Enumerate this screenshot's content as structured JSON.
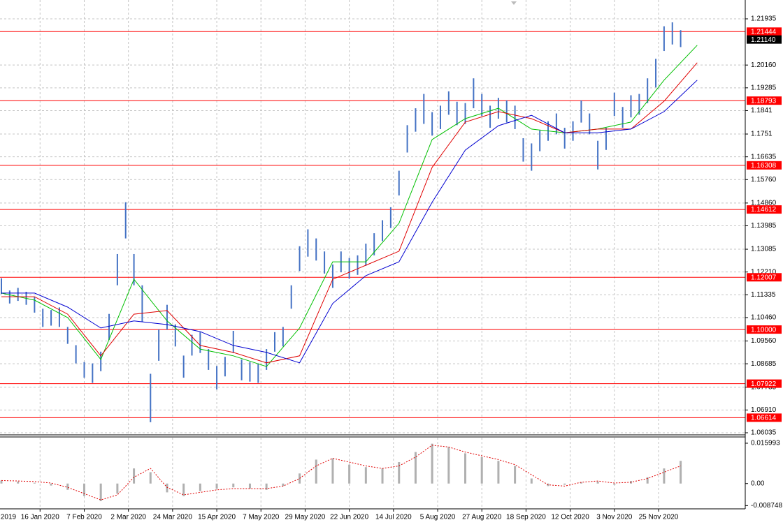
{
  "chart_data": [
    {
      "type": "ohlc",
      "color": "#4472c4",
      "xlim": [
        0,
        269.4
      ],
      "ylim": [
        1.05981,
        1.22605
      ],
      "grid": true,
      "xticks": [
        {
          "value": -2,
          "label": "2019"
        },
        {
          "value": 14,
          "label": "16 Jan 2020"
        },
        {
          "value": 30,
          "label": "7 Feb 2020"
        },
        {
          "value": 46,
          "label": "2 Mar 2020"
        },
        {
          "value": 62,
          "label": "24 Mar 2020"
        },
        {
          "value": 78,
          "label": "15 Apr 2020"
        },
        {
          "value": 94,
          "label": "7 May 2020"
        },
        {
          "value": 110,
          "label": "29 May 2020"
        },
        {
          "value": 126,
          "label": "22 Jun 2020"
        },
        {
          "value": 142,
          "label": "14 Jul 2020"
        },
        {
          "value": 158,
          "label": "5 Aug 2020"
        },
        {
          "value": 174,
          "label": "27 Aug 2020"
        },
        {
          "value": 190,
          "label": "18 Sep 2020"
        },
        {
          "value": 206,
          "label": "12 Oct 2020"
        },
        {
          "value": 222,
          "label": "3 Nov 2020"
        },
        {
          "value": 238,
          "label": "25 Nov 2020"
        }
      ],
      "yticks": [
        1.21935,
        {
          "value": 1.2016,
          "label": "1.20160"
        },
        1.19285,
        1.1841,
        1.1751,
        1.16635,
        {
          "value": 1.1576,
          "label": "1.15760"
        },
        {
          "value": 1.1486,
          "label": "1.14860"
        },
        1.13985,
        1.13085,
        {
          "value": 1.1221,
          "label": "1.12210"
        },
        1.11335,
        {
          "value": 1.1046,
          "label": "1.10460"
        },
        {
          "value": 1.0956,
          "label": "1.09560"
        },
        1.08685,
        1.07785,
        {
          "value": 1.0691,
          "label": "1.06910"
        },
        1.06035
      ],
      "level_color": "#ff0000",
      "levels": [
        1.21444,
        1.18793,
        1.16308,
        1.14612,
        1.12007,
        {
          "value": 1.1,
          "label": "1.10000"
        },
        1.07922,
        1.06614
      ],
      "last_price": {
        "value": 1.2114,
        "label": "1.21140"
      },
      "x": [
        0,
        3,
        6,
        9,
        12,
        15,
        18,
        21,
        24,
        27,
        30,
        33,
        36,
        39,
        42,
        45,
        48,
        51,
        54,
        57,
        60,
        63,
        66,
        69,
        72,
        75,
        78,
        81,
        84,
        87,
        90,
        93,
        96,
        99,
        102,
        105,
        108,
        111,
        114,
        117,
        120,
        123,
        126,
        129,
        132,
        135,
        138,
        141,
        144,
        147,
        150,
        153,
        156,
        159,
        162,
        165,
        168,
        171,
        174,
        177,
        180,
        183,
        186,
        189,
        192,
        195,
        198,
        201,
        204,
        207,
        210,
        213,
        216,
        219,
        222,
        225,
        228,
        231,
        234,
        237,
        240,
        243,
        246
      ],
      "high": [
        1.1197,
        1.115,
        1.116,
        1.1145,
        1.1125,
        1.108,
        1.1075,
        1.1085,
        1.101,
        1.094,
        1.0875,
        1.087,
        1.0915,
        1.106,
        1.129,
        1.1489,
        1.129,
        1.117,
        1.083,
        1.1,
        1.1095,
        1.102,
        1.09,
        1.098,
        1.099,
        1.0925,
        1.086,
        1.0895,
        1.0995,
        1.0885,
        1.0875,
        1.087,
        1.0925,
        1.099,
        1.101,
        1.117,
        1.132,
        1.1385,
        1.135,
        1.13,
        1.125,
        1.13,
        1.1275,
        1.1285,
        1.133,
        1.137,
        1.142,
        1.147,
        1.161,
        1.1785,
        1.185,
        1.1905,
        1.1835,
        1.186,
        1.1915,
        1.1875,
        1.187,
        1.1965,
        1.1905,
        1.186,
        1.189,
        1.188,
        1.186,
        1.1735,
        1.1715,
        1.1765,
        1.18,
        1.183,
        1.1775,
        1.18,
        1.188,
        1.183,
        1.1725,
        1.1775,
        1.191,
        1.1855,
        1.19,
        1.1905,
        1.1965,
        1.204,
        1.2165,
        1.218,
        1.215
      ],
      "low": [
        1.1137,
        1.11,
        1.111,
        1.1095,
        1.1065,
        1.101,
        1.1015,
        1.101,
        1.0945,
        1.087,
        1.0815,
        1.0795,
        1.084,
        1.096,
        1.117,
        1.135,
        1.117,
        1.103,
        1.0644,
        1.088,
        1.1,
        1.0935,
        1.0815,
        1.09,
        1.091,
        1.0845,
        1.077,
        1.082,
        1.091,
        1.0805,
        1.08,
        1.0795,
        1.0845,
        1.0915,
        1.0935,
        1.108,
        1.1225,
        1.128,
        1.1265,
        1.1215,
        1.116,
        1.122,
        1.1195,
        1.121,
        1.1245,
        1.1285,
        1.134,
        1.139,
        1.1515,
        1.168,
        1.176,
        1.179,
        1.1745,
        1.177,
        1.1825,
        1.1785,
        1.179,
        1.185,
        1.182,
        1.1775,
        1.181,
        1.1795,
        1.177,
        1.1645,
        1.161,
        1.1685,
        1.1725,
        1.175,
        1.1695,
        1.1725,
        1.1795,
        1.175,
        1.1615,
        1.169,
        1.182,
        1.1775,
        1.1815,
        1.1825,
        1.187,
        1.193,
        1.207,
        1.2095,
        1.2085
      ],
      "series": [
        {
          "color": "#00c000",
          "x": [
            0,
            12,
            24,
            36,
            48,
            60,
            72,
            84,
            96,
            108,
            120,
            132,
            144,
            156,
            168,
            180,
            192,
            204,
            216,
            228,
            240,
            252
          ],
          "values": [
            1.114,
            1.1113,
            1.1046,
            1.0885,
            1.1193,
            1.1033,
            1.0925,
            1.0899,
            1.0858,
            1.1006,
            1.126,
            1.126,
            1.1408,
            1.173,
            1.181,
            1.185,
            1.177,
            1.1756,
            1.177,
            1.1797,
            1.1958,
            1.2092
          ]
        },
        {
          "color": "#e00000",
          "x": [
            0,
            12,
            24,
            36,
            48,
            60,
            72,
            84,
            96,
            108,
            120,
            132,
            144,
            156,
            168,
            180,
            192,
            204,
            216,
            228,
            240,
            252
          ],
          "values": [
            1.1126,
            1.1126,
            1.1059,
            1.0899,
            1.1059,
            1.1073,
            1.0939,
            1.0912,
            1.0872,
            1.0899,
            1.1193,
            1.1247,
            1.1301,
            1.1623,
            1.1797,
            1.1837,
            1.181,
            1.1756,
            1.177,
            1.177,
            1.1877,
            1.2025
          ]
        },
        {
          "color": "#0000d0",
          "x": [
            0,
            12,
            24,
            36,
            48,
            60,
            72,
            84,
            96,
            108,
            120,
            132,
            144,
            156,
            168,
            180,
            192,
            204,
            216,
            228,
            240,
            252
          ],
          "values": [
            1.114,
            1.114,
            1.1086,
            1.1006,
            1.1033,
            1.1019,
            1.0992,
            1.0939,
            1.0912,
            1.0872,
            1.11,
            1.1207,
            1.126,
            1.1489,
            1.1689,
            1.1783,
            1.1823,
            1.1756,
            1.1756,
            1.177,
            1.1837,
            1.1958
          ]
        }
      ]
    },
    {
      "type": "macd",
      "color": "#b0b0b0",
      "xlim": [
        0,
        269.4
      ],
      "ylim": [
        -0.00976,
        0.0182
      ],
      "yticks": [
        0.015993,
        {
          "value": 0,
          "label": "0.00"
        },
        -0.008748
      ],
      "x": [
        0,
        6,
        12,
        18,
        24,
        30,
        36,
        42,
        48,
        54,
        60,
        66,
        72,
        78,
        84,
        90,
        96,
        102,
        108,
        114,
        120,
        126,
        132,
        138,
        144,
        150,
        156,
        162,
        168,
        174,
        180,
        186,
        192,
        198,
        204,
        210,
        216,
        222,
        228,
        234,
        240,
        246
      ],
      "values": [
        0.0012,
        0.0008,
        0.0003,
        -0.0008,
        -0.0025,
        -0.005,
        -0.007,
        -0.004,
        0.006,
        0.0045,
        -0.0035,
        -0.005,
        -0.003,
        -0.002,
        -0.0015,
        -0.002,
        -0.0025,
        -0.001,
        0.004,
        0.0095,
        0.01,
        0.0075,
        0.0065,
        0.006,
        0.0085,
        0.0125,
        0.0158,
        0.0145,
        0.012,
        0.0105,
        0.009,
        0.007,
        0.002,
        -0.001,
        -0.0005,
        0.0005,
        0.0008,
        -0.0005,
        0.001,
        0.0025,
        0.006,
        0.009
      ],
      "series": [
        {
          "color": "#e00000",
          "values": [
            0.0012,
            0.001,
            0.0008,
            0.0002,
            -0.0015,
            -0.004,
            -0.0065,
            -0.0045,
            0.0025,
            0.006,
            -0.0015,
            -0.0045,
            -0.0035,
            -0.0025,
            -0.002,
            -0.002,
            -0.002,
            -0.001,
            0.002,
            0.007,
            0.01,
            0.0085,
            0.007,
            0.006,
            0.007,
            0.0105,
            0.0152,
            0.0145,
            0.0125,
            0.011,
            0.0095,
            0.0075,
            0.0035,
            -0.0005,
            -0.001,
            0.0005,
            0.001,
            0.0002,
            0.0005,
            0.002,
            0.0045,
            0.007
          ]
        }
      ]
    }
  ]
}
